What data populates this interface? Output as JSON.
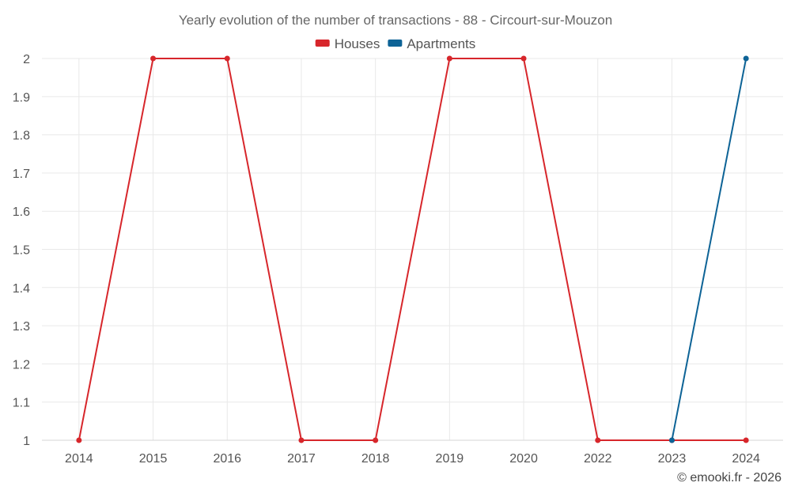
{
  "chart_data": {
    "type": "line",
    "title": "Yearly evolution of the number of transactions - 88 - Circourt-sur-Mouzon",
    "categories": [
      "2014",
      "2015",
      "2016",
      "2017",
      "2018",
      "2019",
      "2020",
      "2022",
      "2023",
      "2024"
    ],
    "series": [
      {
        "name": "Houses",
        "color": "#d7262b",
        "values": [
          1,
          2,
          2,
          1,
          1,
          2,
          2,
          1,
          1,
          1
        ]
      },
      {
        "name": "Apartments",
        "color": "#0d6396",
        "values": [
          null,
          null,
          null,
          null,
          null,
          null,
          null,
          null,
          1,
          2
        ]
      }
    ],
    "ylim": [
      1,
      2
    ],
    "yticks": [
      "1",
      "1.1",
      "1.2",
      "1.3",
      "1.4",
      "1.5",
      "1.6",
      "1.7",
      "1.8",
      "1.9",
      "2"
    ],
    "xlabel": "",
    "ylabel": "",
    "grid": true,
    "legend": "top-center"
  },
  "credit": "© emooki.fr - 2026"
}
